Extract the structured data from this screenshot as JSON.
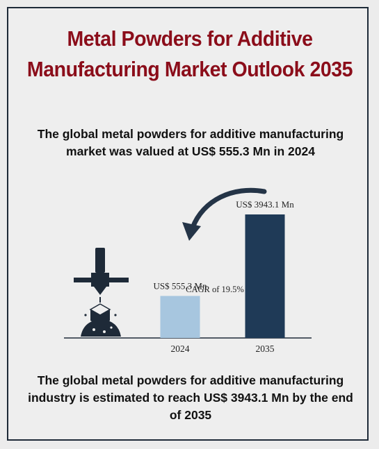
{
  "title": "Metal Powders for Additive Manufacturing Market Outlook 2035",
  "summary_top": "The global metal powders for additive manufacturing market was valued at US$ 555.3 Mn in 2024",
  "summary_bottom": "The global metal powders for additive manufacturing industry is estimated to reach US$ 3943.1 Mn by the end of 2035",
  "colors": {
    "title": "#8b0d1a",
    "bar_2024": "#a7c6df",
    "bar_2035": "#1f3a57",
    "icon": "#1e2a38",
    "border": "#1e2a38"
  },
  "icons": [
    "3d-printer-nozzle-icon",
    "curved-arrow-icon"
  ],
  "chart_data": {
    "type": "bar",
    "categories": [
      "2024",
      "2035"
    ],
    "values": [
      555.3,
      3943.1
    ],
    "data_labels": [
      "US$ 555.3 Mn",
      "US$ 3943.1 Mn"
    ],
    "annotation": "CAGR of 19.5%",
    "xlabel": "",
    "ylabel": "",
    "grid": false
  }
}
